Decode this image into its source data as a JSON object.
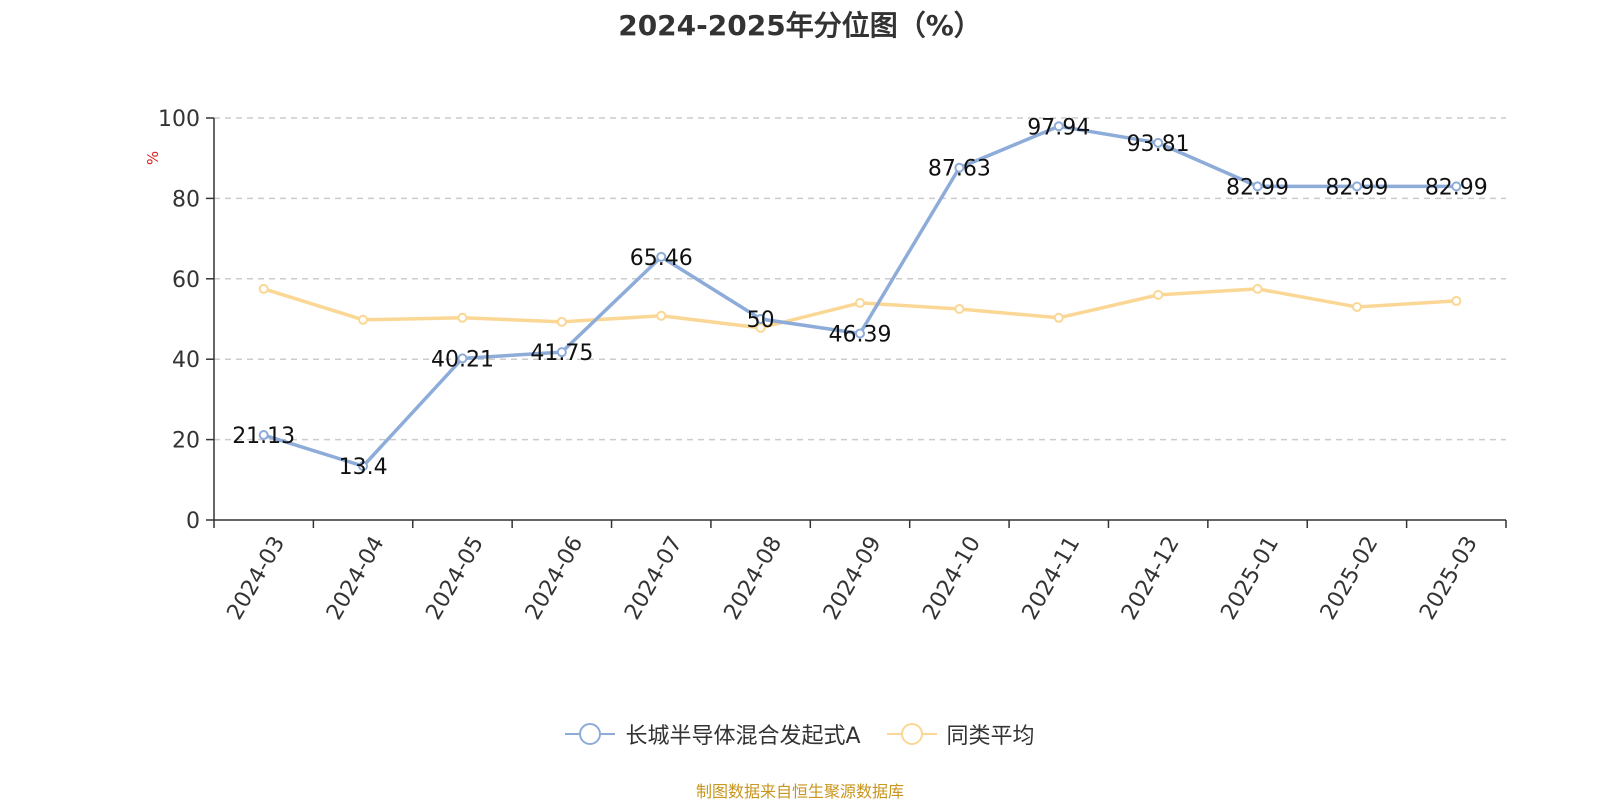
{
  "chart_data": {
    "type": "line",
    "title": "2024-2025年分位图（%）",
    "ylabel": "%",
    "ylim": [
      0,
      100
    ],
    "yticks": [
      0,
      20,
      40,
      60,
      80,
      100
    ],
    "grid": true,
    "legend_position": "bottom-center",
    "categories": [
      "2024-03",
      "2024-04",
      "2024-05",
      "2024-06",
      "2024-07",
      "2024-08",
      "2024-09",
      "2024-10",
      "2024-11",
      "2024-12",
      "2025-01",
      "2025-02",
      "2025-03"
    ],
    "series": [
      {
        "name": "长城半导体混合发起式A",
        "color": "#8eacd9",
        "values": [
          21.13,
          13.4,
          40.21,
          41.75,
          65.46,
          50,
          46.39,
          87.63,
          97.94,
          93.81,
          82.99,
          82.99,
          82.99
        ],
        "labels": [
          "21.13",
          "13.4",
          "40.21",
          "41.75",
          "65.46",
          "50",
          "46.39",
          "87.63",
          "97.94",
          "93.81",
          "82.99",
          "82.99",
          "82.99"
        ],
        "show_labels": true
      },
      {
        "name": "同类平均",
        "color": "#fbd795",
        "values": [
          57.5,
          49.8,
          50.3,
          49.3,
          50.8,
          47.8,
          54.0,
          52.5,
          50.3,
          56.0,
          57.5,
          53.0,
          54.5
        ],
        "show_labels": false
      }
    ]
  },
  "source_note": "制图数据来自恒生聚源数据库"
}
